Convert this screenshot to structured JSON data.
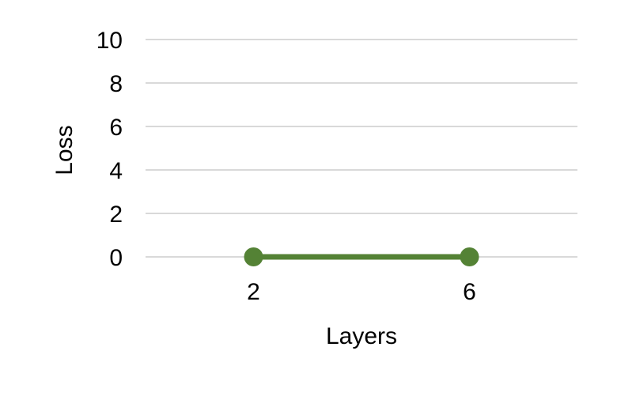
{
  "chart_data": {
    "type": "line",
    "xlabel": "Layers",
    "ylabel": "Loss",
    "categories": [
      "2",
      "6"
    ],
    "series": [
      {
        "values": [
          0,
          0
        ],
        "color": "#548235"
      }
    ],
    "ylim": [
      0,
      10
    ],
    "yticks": [
      0,
      2,
      4,
      6,
      8,
      10
    ],
    "grid": true,
    "legend": "none",
    "gridline_color": "#d9d9d9"
  }
}
